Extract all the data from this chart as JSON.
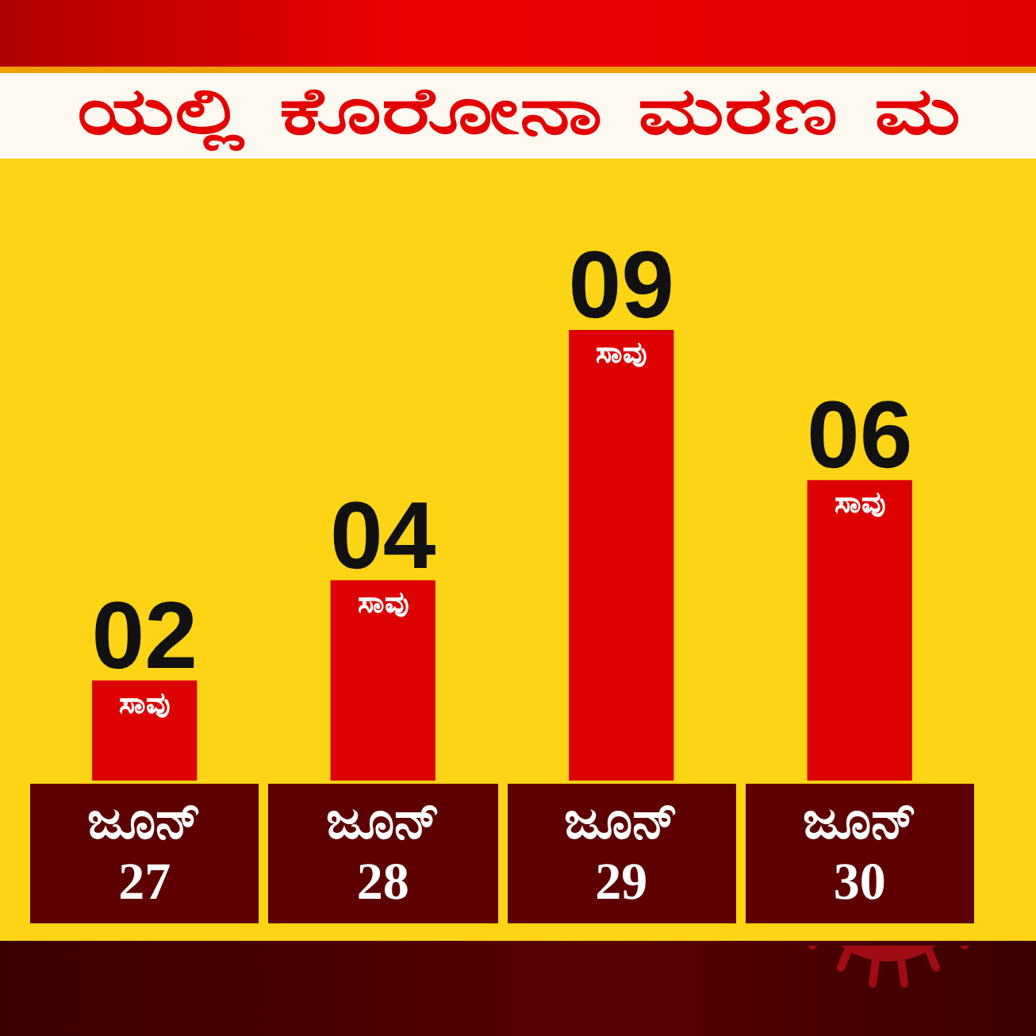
{
  "chart_data": {
    "type": "bar",
    "title": "ಯಲ್ಲಿ ಕೊರೋನಾ ಮರಣ ಮ",
    "categories": [
      "ಜೂನ್ 27",
      "ಜೂನ್ 28",
      "ಜೂನ್ 29",
      "ಜೂನ್ 30"
    ],
    "values": [
      2,
      4,
      9,
      6
    ],
    "color": "#dd0000",
    "value_labels": [
      "02",
      "04",
      "09",
      "06"
    ],
    "annotations": [
      {
        "text": "ಸಾವು",
        "x": "ಜೂನ್ 27",
        "y": 2
      },
      {
        "text": "ಸಾವು",
        "x": "ಜೂನ್ 28",
        "y": 4
      },
      {
        "text": "ಸಾವು",
        "x": "ಜೂನ್ 29",
        "y": 9
      },
      {
        "text": "ಸಾವು",
        "x": "ಜೂನ್ 30",
        "y": 6
      }
    ],
    "grid": false,
    "legend": false
  }
}
